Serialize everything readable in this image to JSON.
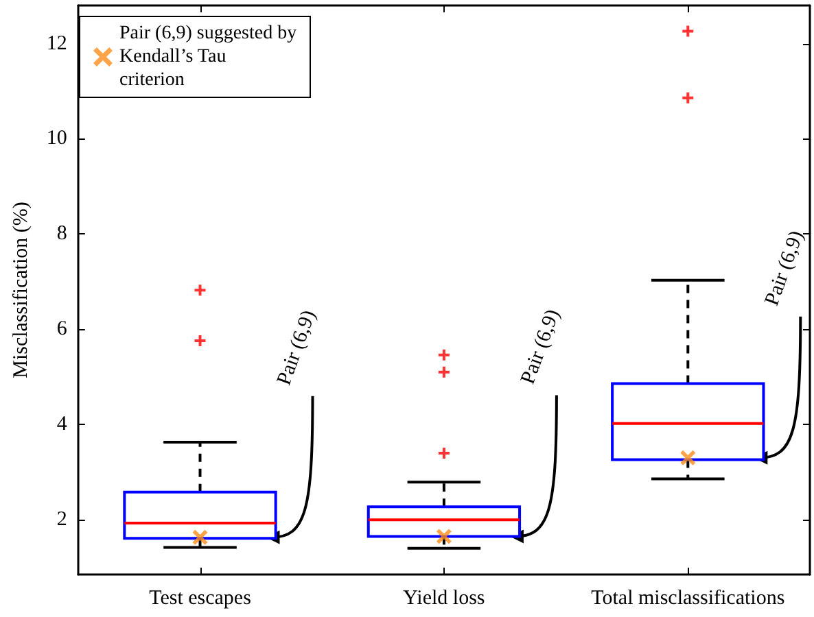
{
  "chart_data": {
    "type": "box",
    "ylabel": "Misclassification (%)",
    "categories": [
      "Test escapes",
      "Yield loss",
      "Total misclassifications"
    ],
    "ylim": [
      0.85,
      12.8
    ],
    "yticks": [
      2,
      4,
      6,
      8,
      10,
      12
    ],
    "grid": false,
    "legend": "top left",
    "series": [
      {
        "color": "#0000ff",
        "boxes": [
          {
            "low": 1.42,
            "q1": 1.61,
            "median": 1.93,
            "q3": 2.58,
            "high": 3.63,
            "outliers": [
              6.82,
              5.76
            ]
          },
          {
            "low": 1.4,
            "q1": 1.65,
            "median": 2.0,
            "q3": 2.27,
            "high": 2.79,
            "outliers": [
              5.46,
              5.1,
              3.4
            ]
          },
          {
            "low": 2.86,
            "q1": 3.26,
            "median": 4.02,
            "q3": 4.86,
            "high": 7.03,
            "outliers": [
              12.26,
              10.86
            ]
          }
        ]
      },
      {
        "type": "scatter",
        "name": "Pair (6,9) suggested by Kendall’s Tau criterion",
        "color": "#ff8c1a",
        "marker": "cross",
        "x": [
          "Test escapes",
          "Yield loss",
          "Total misclassifications"
        ],
        "values": [
          1.63,
          1.65,
          3.3
        ]
      }
    ],
    "annotations": [
      "Pair (6,9)",
      "Pair (6,9)",
      "Pair (6,9)"
    ]
  }
}
